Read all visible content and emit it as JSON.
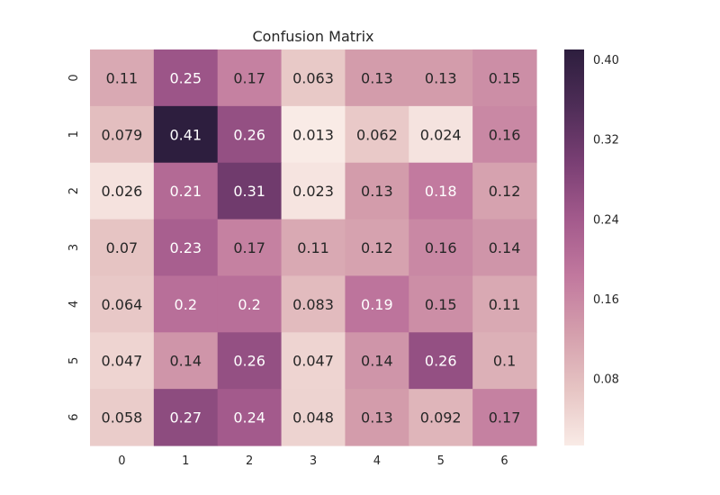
{
  "chart_data": {
    "type": "heatmap",
    "title": "Confusion Matrix",
    "xlabel": "",
    "ylabel": "",
    "x_categories": [
      "0",
      "1",
      "2",
      "3",
      "4",
      "5",
      "6"
    ],
    "y_categories": [
      "0",
      "1",
      "2",
      "3",
      "4",
      "5",
      "6"
    ],
    "values": [
      [
        0.11,
        0.25,
        0.17,
        0.063,
        0.13,
        0.13,
        0.15
      ],
      [
        0.079,
        0.41,
        0.26,
        0.013,
        0.062,
        0.024,
        0.16
      ],
      [
        0.026,
        0.21,
        0.31,
        0.023,
        0.13,
        0.18,
        0.12
      ],
      [
        0.07,
        0.23,
        0.17,
        0.11,
        0.12,
        0.16,
        0.14
      ],
      [
        0.064,
        0.2,
        0.2,
        0.083,
        0.19,
        0.15,
        0.11
      ],
      [
        0.047,
        0.14,
        0.26,
        0.047,
        0.14,
        0.26,
        0.1
      ],
      [
        0.058,
        0.27,
        0.24,
        0.048,
        0.13,
        0.092,
        0.17
      ]
    ],
    "value_labels": [
      [
        "0.11",
        "0.25",
        "0.17",
        "0.063",
        "0.13",
        "0.13",
        "0.15"
      ],
      [
        "0.079",
        "0.41",
        "0.26",
        "0.013",
        "0.062",
        "0.024",
        "0.16"
      ],
      [
        "0.026",
        "0.21",
        "0.31",
        "0.023",
        "0.13",
        "0.18",
        "0.12"
      ],
      [
        "0.07",
        "0.23",
        "0.17",
        "0.11",
        "0.12",
        "0.16",
        "0.14"
      ],
      [
        "0.064",
        "0.2",
        "0.2",
        "0.083",
        "0.19",
        "0.15",
        "0.11"
      ],
      [
        "0.047",
        "0.14",
        "0.26",
        "0.047",
        "0.14",
        "0.26",
        "0.1"
      ],
      [
        "0.058",
        "0.27",
        "0.24",
        "0.048",
        "0.13",
        "0.092",
        "0.17"
      ]
    ],
    "colorbar": {
      "min": 0.013,
      "max": 0.41,
      "ticks": [
        0.08,
        0.16,
        0.24,
        0.32,
        0.4
      ],
      "tick_labels": [
        "0.08",
        "0.16",
        "0.24",
        "0.32",
        "0.40"
      ],
      "colors": [
        "#f9ebe6",
        "#e6c4c3",
        "#d49eac",
        "#c1789e",
        "#a35a8c",
        "#7a3f74",
        "#4e2d57",
        "#2d1e3e"
      ]
    },
    "grid": false,
    "legend": "colorbar-right"
  }
}
